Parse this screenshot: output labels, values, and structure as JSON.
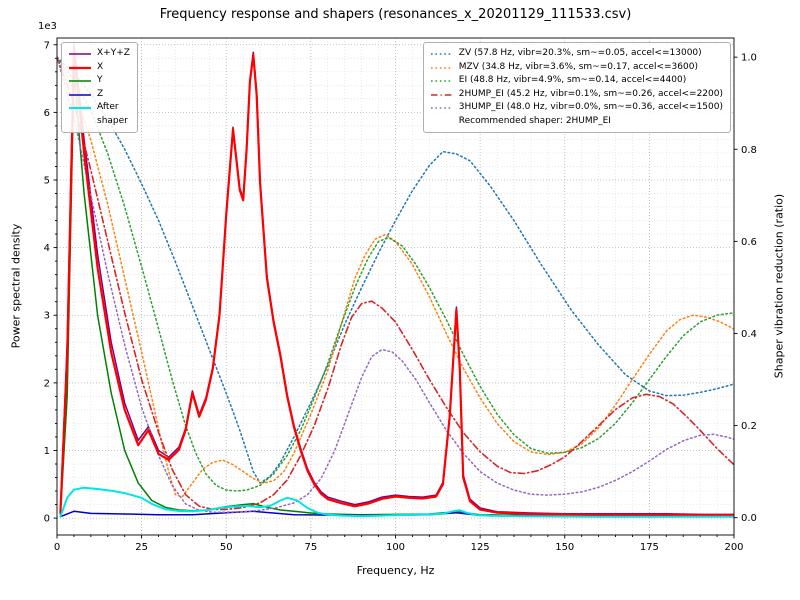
{
  "chart_data": {
    "type": "line",
    "title": "Frequency response and shapers (resonances_x_20201129_111533.csv)",
    "xlabel": "Frequency, Hz",
    "ylabel_left": "Power spectral density",
    "ylabel_right": "Shaper vibration reduction (ratio)",
    "y_offset_label": "1e3",
    "xlim": [
      0,
      200
    ],
    "ylim_left": [
      -250,
      7100
    ],
    "ylim_right": [
      -0.0376,
      1.0416
    ],
    "grid": {
      "x_major_step": 25,
      "x_minor_step": 5,
      "y_major_step": 1000,
      "y_minor_step": 200
    },
    "xticks": {
      "values": [
        0,
        25,
        50,
        75,
        100,
        125,
        150,
        175,
        200
      ],
      "labels": [
        "0",
        "25",
        "50",
        "75",
        "100",
        "125",
        "150",
        "175",
        "200"
      ]
    },
    "yticks_left": {
      "values": [
        0,
        1000,
        2000,
        3000,
        4000,
        5000,
        6000,
        7000
      ],
      "labels": [
        "0",
        "1",
        "2",
        "3",
        "4",
        "5",
        "6",
        "7"
      ]
    },
    "yticks_right": {
      "values": [
        0,
        0.2,
        0.4,
        0.6,
        0.8,
        1.0
      ],
      "labels": [
        "0.0",
        "0.2",
        "0.4",
        "0.6",
        "0.8",
        "1.0"
      ]
    },
    "series": [
      {
        "name": "X+Y+Z",
        "axis": "left",
        "color": "#800080",
        "width": 1.5,
        "dash": "solid",
        "x": [
          1,
          3,
          5,
          8,
          12,
          16,
          20,
          24,
          27,
          30,
          33,
          36,
          38,
          40,
          42,
          44,
          46,
          48,
          50,
          52,
          54,
          55,
          56,
          57,
          58,
          59,
          60,
          62,
          64,
          66,
          68,
          70,
          72,
          74,
          76,
          78,
          80,
          84,
          88,
          92,
          96,
          100,
          104,
          108,
          112,
          114,
          116,
          118,
          119,
          120,
          122,
          125,
          130,
          140,
          150,
          160,
          170,
          180,
          190,
          200
        ],
        "y": [
          100,
          2600,
          7000,
          5600,
          3900,
          2600,
          1700,
          1150,
          1350,
          1000,
          900,
          1050,
          1330,
          1880,
          1530,
          1780,
          2230,
          3030,
          4530,
          5780,
          4880,
          4730,
          5480,
          6480,
          6890,
          6290,
          4990,
          3590,
          2930,
          2430,
          1830,
          1380,
          1030,
          730,
          530,
          390,
          310,
          250,
          200,
          240,
          310,
          340,
          320,
          310,
          340,
          530,
          1530,
          3120,
          2240,
          640,
          280,
          150,
          95,
          75,
          65,
          65,
          65,
          65,
          55,
          55
        ]
      },
      {
        "name": "Y",
        "axis": "left",
        "color": "#008000",
        "width": 1.5,
        "dash": "solid",
        "x": [
          1,
          3,
          5,
          8,
          12,
          16,
          20,
          24,
          28,
          32,
          36,
          40,
          45,
          50,
          55,
          58,
          62,
          66,
          70,
          75,
          80,
          90,
          100,
          110,
          118,
          125,
          140,
          160,
          180,
          200
        ],
        "y": [
          50,
          1800,
          6600,
          4800,
          3000,
          1850,
          1000,
          520,
          260,
          160,
          120,
          110,
          120,
          170,
          200,
          215,
          160,
          120,
          100,
          75,
          60,
          50,
          55,
          60,
          95,
          50,
          40,
          40,
          40,
          50
        ]
      },
      {
        "name": "Z",
        "axis": "left",
        "color": "#0000cd",
        "width": 1.5,
        "dash": "solid",
        "x": [
          1,
          5,
          10,
          20,
          30,
          40,
          50,
          58,
          70,
          90,
          110,
          118,
          125,
          150,
          200
        ],
        "y": [
          20,
          100,
          70,
          60,
          50,
          50,
          80,
          100,
          50,
          40,
          50,
          80,
          40,
          30,
          30
        ]
      },
      {
        "name": "ZV",
        "axis": "right",
        "color": "#1f77b4",
        "width": 1.5,
        "dash": "dotted",
        "x": [
          0,
          5,
          10,
          15,
          20,
          25,
          30,
          35,
          40,
          45,
          50,
          54,
          58,
          60,
          63,
          66,
          70,
          75,
          80,
          85,
          90,
          95,
          100,
          105,
          110,
          114,
          118,
          122,
          128,
          135,
          143,
          152,
          160,
          168,
          175,
          180,
          185,
          190,
          195,
          200
        ],
        "y": [
          1.0,
          0.965,
          0.92,
          0.865,
          0.8,
          0.725,
          0.645,
          0.555,
          0.46,
          0.365,
          0.27,
          0.19,
          0.1,
          0.075,
          0.09,
          0.12,
          0.175,
          0.25,
          0.33,
          0.42,
          0.5,
          0.575,
          0.645,
          0.71,
          0.765,
          0.795,
          0.79,
          0.775,
          0.72,
          0.645,
          0.55,
          0.45,
          0.375,
          0.31,
          0.275,
          0.265,
          0.266,
          0.272,
          0.28,
          0.29
        ]
      },
      {
        "name": "MZV",
        "axis": "right",
        "color": "#ff7f0e",
        "width": 1.5,
        "dash": "dotted",
        "x": [
          0,
          5,
          10,
          15,
          20,
          25,
          28,
          31,
          33,
          35,
          37,
          40,
          43,
          46,
          49,
          52,
          55,
          58,
          61,
          64,
          67,
          70,
          75,
          80,
          84,
          88,
          91,
          94,
          97,
          100,
          105,
          110,
          115,
          120,
          125,
          130,
          135,
          140,
          145,
          150,
          155,
          160,
          165,
          170,
          175,
          180,
          184,
          188,
          192,
          196,
          200
        ],
        "y": [
          1.0,
          0.93,
          0.82,
          0.68,
          0.52,
          0.36,
          0.26,
          0.16,
          0.1,
          0.05,
          0.045,
          0.075,
          0.105,
          0.12,
          0.125,
          0.115,
          0.1,
          0.085,
          0.075,
          0.08,
          0.1,
          0.14,
          0.225,
          0.32,
          0.42,
          0.52,
          0.57,
          0.605,
          0.615,
          0.6,
          0.55,
          0.48,
          0.4,
          0.325,
          0.26,
          0.205,
          0.165,
          0.143,
          0.137,
          0.142,
          0.16,
          0.195,
          0.245,
          0.3,
          0.355,
          0.405,
          0.43,
          0.44,
          0.435,
          0.425,
          0.41
        ]
      },
      {
        "name": "EI",
        "axis": "right",
        "color": "#2ca02c",
        "width": 1.5,
        "dash": "dotted",
        "x": [
          0,
          5,
          10,
          15,
          20,
          25,
          30,
          34,
          38,
          41,
          44,
          47,
          50,
          53,
          56,
          60,
          64,
          68,
          72,
          76,
          80,
          84,
          88,
          92,
          95,
          98,
          102,
          106,
          110,
          115,
          120,
          125,
          130,
          135,
          140,
          145,
          150,
          155,
          160,
          165,
          170,
          175,
          180,
          185,
          190,
          195,
          200
        ],
        "y": [
          1.0,
          0.95,
          0.885,
          0.79,
          0.675,
          0.545,
          0.41,
          0.3,
          0.2,
          0.14,
          0.095,
          0.07,
          0.06,
          0.058,
          0.06,
          0.07,
          0.095,
          0.135,
          0.19,
          0.26,
          0.335,
          0.42,
          0.5,
          0.565,
          0.6,
          0.608,
          0.59,
          0.55,
          0.5,
          0.43,
          0.355,
          0.285,
          0.225,
          0.18,
          0.15,
          0.14,
          0.142,
          0.152,
          0.172,
          0.205,
          0.25,
          0.3,
          0.35,
          0.395,
          0.425,
          0.44,
          0.445
        ]
      },
      {
        "name": "2HUMP_EI",
        "axis": "right",
        "color": "#d62728",
        "width": 1.6,
        "dash": "dashdot",
        "x": [
          0,
          5,
          10,
          15,
          20,
          25,
          30,
          34,
          38,
          42,
          46,
          50,
          55,
          60,
          64,
          68,
          72,
          76,
          80,
          84,
          87,
          90,
          93,
          96,
          100,
          105,
          110,
          115,
          120,
          125,
          130,
          134,
          138,
          142,
          146,
          150,
          155,
          160,
          165,
          170,
          174,
          178,
          182,
          186,
          190,
          195,
          200
        ],
        "y": [
          1.0,
          0.9,
          0.755,
          0.6,
          0.445,
          0.3,
          0.185,
          0.105,
          0.05,
          0.025,
          0.018,
          0.018,
          0.022,
          0.032,
          0.05,
          0.082,
          0.135,
          0.2,
          0.28,
          0.375,
          0.435,
          0.465,
          0.47,
          0.455,
          0.425,
          0.365,
          0.3,
          0.24,
          0.185,
          0.143,
          0.112,
          0.098,
          0.096,
          0.102,
          0.115,
          0.132,
          0.165,
          0.2,
          0.235,
          0.26,
          0.268,
          0.263,
          0.247,
          0.22,
          0.19,
          0.15,
          0.115
        ]
      },
      {
        "name": "3HUMP_EI",
        "axis": "right",
        "color": "#9467bd",
        "width": 1.5,
        "dash": "dotted",
        "x": [
          0,
          5,
          10,
          15,
          20,
          25,
          30,
          34,
          38,
          42,
          46,
          50,
          55,
          60,
          65,
          70,
          74,
          78,
          82,
          86,
          90,
          93,
          96,
          99,
          102,
          106,
          110,
          115,
          120,
          125,
          130,
          135,
          140,
          145,
          150,
          155,
          160,
          165,
          170,
          175,
          180,
          185,
          190,
          194,
          198,
          200
        ],
        "y": [
          1.0,
          0.87,
          0.7,
          0.53,
          0.375,
          0.24,
          0.135,
          0.07,
          0.03,
          0.016,
          0.012,
          0.012,
          0.013,
          0.016,
          0.022,
          0.032,
          0.05,
          0.085,
          0.145,
          0.225,
          0.305,
          0.35,
          0.365,
          0.36,
          0.34,
          0.3,
          0.25,
          0.19,
          0.14,
          0.1,
          0.075,
          0.06,
          0.051,
          0.049,
          0.051,
          0.056,
          0.066,
          0.081,
          0.1,
          0.123,
          0.148,
          0.167,
          0.179,
          0.181,
          0.175,
          0.17
        ]
      },
      {
        "name": "X",
        "axis": "left",
        "color": "#ff0000",
        "width": 2.2,
        "dash": "solid",
        "x": [
          1,
          3,
          5,
          8,
          12,
          16,
          20,
          24,
          27,
          30,
          33,
          36,
          38,
          40,
          42,
          44,
          46,
          48,
          50,
          52,
          54,
          55,
          56,
          57,
          58,
          59,
          60,
          62,
          64,
          66,
          68,
          70,
          72,
          74,
          76,
          78,
          80,
          84,
          88,
          92,
          96,
          100,
          104,
          108,
          112,
          114,
          116,
          118,
          119,
          120,
          122,
          125,
          130,
          140,
          150,
          160,
          170,
          180,
          190,
          200
        ],
        "y": [
          80,
          2400,
          6900,
          5400,
          3700,
          2450,
          1600,
          1080,
          1300,
          950,
          860,
          1010,
          1300,
          1850,
          1500,
          1750,
          2200,
          3000,
          4500,
          5750,
          4850,
          4700,
          5450,
          6450,
          6850,
          6250,
          4950,
          3550,
          2900,
          2400,
          1800,
          1350,
          1000,
          700,
          500,
          360,
          280,
          220,
          175,
          215,
          285,
          320,
          300,
          290,
          320,
          500,
          1500,
          3080,
          2200,
          600,
          250,
          125,
          80,
          60,
          55,
          50,
          50,
          50,
          45,
          45
        ]
      },
      {
        "name": "After shaper",
        "axis": "left",
        "color": "#00e5e5",
        "width": 2.0,
        "dash": "solid",
        "x": [
          1,
          3,
          5,
          8,
          12,
          16,
          20,
          25,
          28,
          32,
          36,
          40,
          44,
          48,
          52,
          56,
          60,
          63,
          66,
          68,
          71,
          74,
          77,
          80,
          85,
          90,
          95,
          100,
          105,
          110,
          114,
          117,
          119,
          121,
          124,
          128,
          135,
          145,
          160,
          180,
          200
        ],
        "y": [
          20,
          300,
          420,
          450,
          430,
          405,
          370,
          300,
          210,
          130,
          105,
          100,
          115,
          150,
          170,
          180,
          160,
          180,
          260,
          300,
          260,
          150,
          80,
          50,
          35,
          30,
          35,
          45,
          50,
          55,
          65,
          100,
          115,
          80,
          45,
          35,
          30,
          25,
          20,
          20,
          20
        ]
      }
    ]
  },
  "legend_psd": {
    "items": [
      {
        "label": "X+Y+Z",
        "color": "#800080",
        "dash": "solid",
        "width": 1.5
      },
      {
        "label": "X",
        "color": "#ff0000",
        "dash": "solid",
        "width": 2.2
      },
      {
        "label": "Y",
        "color": "#008000",
        "dash": "solid",
        "width": 1.5
      },
      {
        "label": "Z",
        "color": "#0000cd",
        "dash": "solid",
        "width": 1.5
      },
      {
        "label": "After\nshaper",
        "color": "#00e5e5",
        "dash": "solid",
        "width": 2
      }
    ]
  },
  "legend_shapers": {
    "items": [
      {
        "label": "ZV (57.8 Hz, vibr=20.3%, sm~=0.05, accel<=13000)",
        "color": "#1f77b4",
        "dash": "dotted",
        "width": 1.5
      },
      {
        "label": "MZV (34.8 Hz, vibr=3.6%, sm~=0.17, accel<=3600)",
        "color": "#ff7f0e",
        "dash": "dotted",
        "width": 1.5
      },
      {
        "label": "EI (48.8 Hz, vibr=4.9%, sm~=0.14, accel<=4400)",
        "color": "#2ca02c",
        "dash": "dotted",
        "width": 1.5
      },
      {
        "label": "2HUMP_EI (45.2 Hz, vibr=0.1%, sm~=0.26, accel<=2200)",
        "color": "#d62728",
        "dash": "dashdot",
        "width": 1.6
      },
      {
        "label": "3HUMP_EI (48.0 Hz, vibr=0.0%, sm~=0.36, accel<=1500)",
        "color": "#9467bd",
        "dash": "dotted",
        "width": 1.5
      }
    ],
    "note": "Recommended shaper: 2HUMP_EI"
  }
}
